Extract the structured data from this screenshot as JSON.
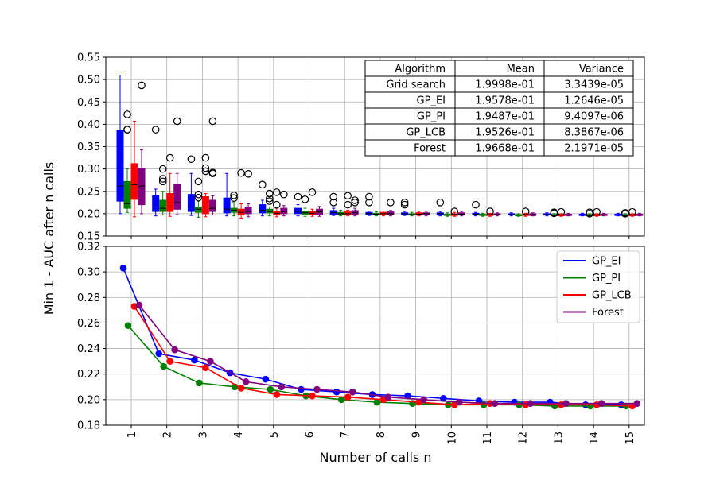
{
  "chart_data": [
    {
      "type": "box",
      "ylabel": "Min 1 - AUC after n calls",
      "ylim": [
        0.15,
        0.55
      ],
      "yticks": [
        "0.15",
        "0.20",
        "0.25",
        "0.30",
        "0.35",
        "0.40",
        "0.45",
        "0.50",
        "0.55"
      ],
      "grid": true,
      "series_colors": {
        "Grid search": "#0000ff",
        "GP_EI": "#008000",
        "GP_PI": "#ff0000",
        "GP_LCB": "#800080"
      },
      "boxes": [
        {
          "n": 1,
          "series": "Grid search",
          "whislo": 0.2,
          "q1": 0.228,
          "med": 0.262,
          "q3": 0.387,
          "whishi": 0.51,
          "fliers": []
        },
        {
          "n": 1,
          "series": "GP_EI",
          "whislo": 0.203,
          "q1": 0.212,
          "med": 0.222,
          "q3": 0.272,
          "whishi": 0.3,
          "fliers": [
            0.422,
            0.388,
            0.388
          ]
        },
        {
          "n": 1,
          "series": "GP_PI",
          "whislo": 0.193,
          "q1": 0.232,
          "med": 0.265,
          "q3": 0.312,
          "whishi": 0.407,
          "fliers": []
        },
        {
          "n": 1,
          "series": "GP_LCB",
          "whislo": 0.2,
          "q1": 0.22,
          "med": 0.262,
          "q3": 0.302,
          "whishi": 0.343,
          "fliers": [
            0.487
          ]
        },
        {
          "n": 2,
          "series": "Grid search",
          "whislo": 0.195,
          "q1": 0.205,
          "med": 0.215,
          "q3": 0.24,
          "whishi": 0.255,
          "fliers": [
            0.388
          ]
        },
        {
          "n": 2,
          "series": "GP_EI",
          "whislo": 0.197,
          "q1": 0.205,
          "med": 0.212,
          "q3": 0.23,
          "whishi": 0.25,
          "fliers": [
            0.3,
            0.278,
            0.272
          ]
        },
        {
          "n": 2,
          "series": "GP_PI",
          "whislo": 0.194,
          "q1": 0.205,
          "med": 0.215,
          "q3": 0.245,
          "whishi": 0.29,
          "fliers": [
            0.325
          ]
        },
        {
          "n": 2,
          "series": "GP_LCB",
          "whislo": 0.198,
          "q1": 0.21,
          "med": 0.225,
          "q3": 0.265,
          "whishi": 0.29,
          "fliers": [
            0.407
          ]
        },
        {
          "n": 3,
          "series": "Grid search",
          "whislo": 0.196,
          "q1": 0.205,
          "med": 0.215,
          "q3": 0.243,
          "whishi": 0.29,
          "fliers": [
            0.322
          ]
        },
        {
          "n": 3,
          "series": "GP_EI",
          "whislo": 0.192,
          "q1": 0.203,
          "med": 0.21,
          "q3": 0.215,
          "whishi": 0.228,
          "fliers": [
            0.272,
            0.243,
            0.236
          ]
        },
        {
          "n": 3,
          "series": "GP_PI",
          "whislo": 0.193,
          "q1": 0.2,
          "med": 0.215,
          "q3": 0.238,
          "whishi": 0.245,
          "fliers": [
            0.325,
            0.302,
            0.295
          ]
        },
        {
          "n": 3,
          "series": "GP_LCB",
          "whislo": 0.197,
          "q1": 0.205,
          "med": 0.212,
          "q3": 0.23,
          "whishi": 0.24,
          "fliers": [
            0.407,
            0.292,
            0.29
          ]
        },
        {
          "n": 4,
          "series": "Grid search",
          "whislo": 0.195,
          "q1": 0.202,
          "med": 0.21,
          "q3": 0.235,
          "whishi": 0.29,
          "fliers": []
        },
        {
          "n": 4,
          "series": "GP_EI",
          "whislo": 0.195,
          "q1": 0.203,
          "med": 0.208,
          "q3": 0.212,
          "whishi": 0.225,
          "fliers": [
            0.241,
            0.235
          ]
        },
        {
          "n": 4,
          "series": "GP_PI",
          "whislo": 0.19,
          "q1": 0.197,
          "med": 0.203,
          "q3": 0.21,
          "whishi": 0.222,
          "fliers": [
            0.291
          ]
        },
        {
          "n": 4,
          "series": "GP_LCB",
          "whislo": 0.193,
          "q1": 0.2,
          "med": 0.205,
          "q3": 0.215,
          "whishi": 0.222,
          "fliers": [
            0.289
          ]
        },
        {
          "n": 5,
          "series": "Grid search",
          "whislo": 0.195,
          "q1": 0.202,
          "med": 0.208,
          "q3": 0.22,
          "whishi": 0.23,
          "fliers": [
            0.265
          ]
        },
        {
          "n": 5,
          "series": "GP_EI",
          "whislo": 0.195,
          "q1": 0.202,
          "med": 0.205,
          "q3": 0.21,
          "whishi": 0.215,
          "fliers": [
            0.245,
            0.234,
            0.228
          ]
        },
        {
          "n": 5,
          "series": "GP_PI",
          "whislo": 0.193,
          "q1": 0.197,
          "med": 0.201,
          "q3": 0.205,
          "whishi": 0.212,
          "fliers": [
            0.248,
            0.22
          ]
        },
        {
          "n": 5,
          "series": "GP_LCB",
          "whislo": 0.195,
          "q1": 0.2,
          "med": 0.205,
          "q3": 0.212,
          "whishi": 0.218,
          "fliers": [
            0.243
          ]
        },
        {
          "n": 6,
          "series": "Grid search",
          "whislo": 0.195,
          "q1": 0.2,
          "med": 0.205,
          "q3": 0.212,
          "whishi": 0.22,
          "fliers": [
            0.238
          ]
        },
        {
          "n": 6,
          "series": "GP_EI",
          "whislo": 0.194,
          "q1": 0.199,
          "med": 0.202,
          "q3": 0.206,
          "whishi": 0.212,
          "fliers": [
            0.232
          ]
        },
        {
          "n": 6,
          "series": "GP_PI",
          "whislo": 0.194,
          "q1": 0.198,
          "med": 0.201,
          "q3": 0.205,
          "whishi": 0.21,
          "fliers": [
            0.248
          ]
        },
        {
          "n": 6,
          "series": "GP_LCB",
          "whislo": 0.194,
          "q1": 0.199,
          "med": 0.204,
          "q3": 0.21,
          "whishi": 0.216,
          "fliers": []
        },
        {
          "n": 7,
          "series": "Grid search",
          "whislo": 0.196,
          "q1": 0.199,
          "med": 0.202,
          "q3": 0.207,
          "whishi": 0.212,
          "fliers": [
            0.238,
            0.225
          ]
        },
        {
          "n": 7,
          "series": "GP_EI",
          "whislo": 0.195,
          "q1": 0.198,
          "med": 0.2,
          "q3": 0.203,
          "whishi": 0.208,
          "fliers": []
        },
        {
          "n": 7,
          "series": "GP_PI",
          "whislo": 0.195,
          "q1": 0.198,
          "med": 0.2,
          "q3": 0.204,
          "whishi": 0.208,
          "fliers": [
            0.24,
            0.22
          ]
        },
        {
          "n": 7,
          "series": "GP_LCB",
          "whislo": 0.195,
          "q1": 0.199,
          "med": 0.202,
          "q3": 0.207,
          "whishi": 0.212,
          "fliers": [
            0.23,
            0.225
          ]
        },
        {
          "n": 8,
          "series": "Grid search",
          "whislo": 0.196,
          "q1": 0.198,
          "med": 0.2,
          "q3": 0.203,
          "whishi": 0.206,
          "fliers": [
            0.238,
            0.225
          ]
        },
        {
          "n": 8,
          "series": "GP_EI",
          "whislo": 0.195,
          "q1": 0.197,
          "med": 0.199,
          "q3": 0.201,
          "whishi": 0.204,
          "fliers": []
        },
        {
          "n": 8,
          "series": "GP_PI",
          "whislo": 0.195,
          "q1": 0.198,
          "med": 0.2,
          "q3": 0.203,
          "whishi": 0.206,
          "fliers": []
        },
        {
          "n": 8,
          "series": "GP_LCB",
          "whislo": 0.195,
          "q1": 0.198,
          "med": 0.2,
          "q3": 0.204,
          "whishi": 0.207,
          "fliers": [
            0.225
          ]
        },
        {
          "n": 9,
          "series": "Grid search",
          "whislo": 0.196,
          "q1": 0.198,
          "med": 0.2,
          "q3": 0.202,
          "whishi": 0.205,
          "fliers": [
            0.225,
            0.22
          ]
        },
        {
          "n": 9,
          "series": "GP_EI",
          "whislo": 0.195,
          "q1": 0.197,
          "med": 0.198,
          "q3": 0.2,
          "whishi": 0.203,
          "fliers": []
        },
        {
          "n": 9,
          "series": "GP_PI",
          "whislo": 0.195,
          "q1": 0.197,
          "med": 0.199,
          "q3": 0.202,
          "whishi": 0.205,
          "fliers": []
        },
        {
          "n": 9,
          "series": "GP_LCB",
          "whislo": 0.195,
          "q1": 0.198,
          "med": 0.2,
          "q3": 0.202,
          "whishi": 0.205,
          "fliers": []
        },
        {
          "n": 10,
          "series": "Grid search",
          "whislo": 0.195,
          "q1": 0.198,
          "med": 0.2,
          "q3": 0.202,
          "whishi": 0.205,
          "fliers": [
            0.225
          ]
        },
        {
          "n": 10,
          "series": "GP_EI",
          "whislo": 0.194,
          "q1": 0.196,
          "med": 0.197,
          "q3": 0.199,
          "whishi": 0.202,
          "fliers": []
        },
        {
          "n": 10,
          "series": "GP_PI",
          "whislo": 0.194,
          "q1": 0.196,
          "med": 0.198,
          "q3": 0.2,
          "whishi": 0.203,
          "fliers": [
            0.205
          ]
        },
        {
          "n": 10,
          "series": "GP_LCB",
          "whislo": 0.195,
          "q1": 0.197,
          "med": 0.199,
          "q3": 0.202,
          "whishi": 0.205,
          "fliers": []
        },
        {
          "n": 11,
          "series": "Grid search",
          "whislo": 0.195,
          "q1": 0.197,
          "med": 0.199,
          "q3": 0.201,
          "whishi": 0.203,
          "fliers": [
            0.22
          ]
        },
        {
          "n": 11,
          "series": "GP_EI",
          "whislo": 0.194,
          "q1": 0.196,
          "med": 0.197,
          "q3": 0.199,
          "whishi": 0.201,
          "fliers": []
        },
        {
          "n": 11,
          "series": "GP_PI",
          "whislo": 0.194,
          "q1": 0.196,
          "med": 0.197,
          "q3": 0.199,
          "whishi": 0.201,
          "fliers": [
            0.205
          ]
        },
        {
          "n": 11,
          "series": "GP_LCB",
          "whislo": 0.195,
          "q1": 0.197,
          "med": 0.198,
          "q3": 0.2,
          "whishi": 0.202,
          "fliers": []
        },
        {
          "n": 12,
          "series": "Grid search",
          "whislo": 0.195,
          "q1": 0.197,
          "med": 0.198,
          "q3": 0.2,
          "whishi": 0.202,
          "fliers": []
        },
        {
          "n": 12,
          "series": "GP_EI",
          "whislo": 0.194,
          "q1": 0.196,
          "med": 0.197,
          "q3": 0.198,
          "whishi": 0.2,
          "fliers": []
        },
        {
          "n": 12,
          "series": "GP_PI",
          "whislo": 0.194,
          "q1": 0.196,
          "med": 0.197,
          "q3": 0.199,
          "whishi": 0.201,
          "fliers": [
            0.205
          ]
        },
        {
          "n": 12,
          "series": "GP_LCB",
          "whislo": 0.195,
          "q1": 0.196,
          "med": 0.198,
          "q3": 0.2,
          "whishi": 0.202,
          "fliers": []
        },
        {
          "n": 13,
          "series": "Grid search",
          "whislo": 0.195,
          "q1": 0.197,
          "med": 0.198,
          "q3": 0.2,
          "whishi": 0.202,
          "fliers": []
        },
        {
          "n": 13,
          "series": "GP_EI",
          "whislo": 0.194,
          "q1": 0.196,
          "med": 0.197,
          "q3": 0.198,
          "whishi": 0.2,
          "fliers": [
            0.203,
            0.201
          ]
        },
        {
          "n": 13,
          "series": "GP_PI",
          "whislo": 0.194,
          "q1": 0.196,
          "med": 0.197,
          "q3": 0.198,
          "whishi": 0.2,
          "fliers": [
            0.204
          ]
        },
        {
          "n": 13,
          "series": "GP_LCB",
          "whislo": 0.195,
          "q1": 0.196,
          "med": 0.197,
          "q3": 0.199,
          "whishi": 0.201,
          "fliers": []
        },
        {
          "n": 14,
          "series": "Grid search",
          "whislo": 0.195,
          "q1": 0.196,
          "med": 0.197,
          "q3": 0.199,
          "whishi": 0.201,
          "fliers": []
        },
        {
          "n": 14,
          "series": "GP_EI",
          "whislo": 0.194,
          "q1": 0.196,
          "med": 0.197,
          "q3": 0.198,
          "whishi": 0.2,
          "fliers": [
            0.203,
            0.2
          ]
        },
        {
          "n": 14,
          "series": "GP_PI",
          "whislo": 0.194,
          "q1": 0.196,
          "med": 0.197,
          "q3": 0.198,
          "whishi": 0.2,
          "fliers": [
            0.204
          ]
        },
        {
          "n": 14,
          "series": "GP_LCB",
          "whislo": 0.195,
          "q1": 0.196,
          "med": 0.197,
          "q3": 0.199,
          "whishi": 0.201,
          "fliers": []
        },
        {
          "n": 15,
          "series": "Grid search",
          "whislo": 0.195,
          "q1": 0.196,
          "med": 0.197,
          "q3": 0.199,
          "whishi": 0.201,
          "fliers": []
        },
        {
          "n": 15,
          "series": "GP_EI",
          "whislo": 0.194,
          "q1": 0.195,
          "med": 0.196,
          "q3": 0.198,
          "whishi": 0.2,
          "fliers": [
            0.202,
            0.2
          ]
        },
        {
          "n": 15,
          "series": "GP_PI",
          "whislo": 0.194,
          "q1": 0.196,
          "med": 0.197,
          "q3": 0.198,
          "whishi": 0.2,
          "fliers": [
            0.204
          ]
        },
        {
          "n": 15,
          "series": "GP_LCB",
          "whislo": 0.195,
          "q1": 0.196,
          "med": 0.197,
          "q3": 0.199,
          "whishi": 0.201,
          "fliers": []
        }
      ],
      "table": {
        "headers": [
          "Algorithm",
          "Mean",
          "Variance"
        ],
        "rows": [
          [
            "Grid search",
            "1.9998e-01",
            "3.3439e-05"
          ],
          [
            "GP_EI",
            "1.9578e-01",
            "1.2646e-05"
          ],
          [
            "GP_PI",
            "1.9487e-01",
            "9.4097e-06"
          ],
          [
            "GP_LCB",
            "1.9526e-01",
            "8.3867e-06"
          ],
          [
            "Forest",
            "1.9668e-01",
            "2.1971e-05"
          ]
        ]
      }
    },
    {
      "type": "line",
      "xlabel": "Number of calls n",
      "ylim": [
        0.18,
        0.32
      ],
      "yticks": [
        "0.18",
        "0.20",
        "0.22",
        "0.24",
        "0.26",
        "0.28",
        "0.30",
        "0.32"
      ],
      "x": [
        1,
        2,
        3,
        4,
        5,
        6,
        7,
        8,
        9,
        10,
        11,
        12,
        13,
        14,
        15
      ],
      "xticks": [
        "1",
        "2",
        "3",
        "4",
        "5",
        "6",
        "7",
        "8",
        "9",
        "10",
        "11",
        "12",
        "13",
        "14",
        "15"
      ],
      "grid": true,
      "legend": "top-right",
      "series": [
        {
          "name": "GP_EI",
          "color": "#0000ff",
          "values": [
            0.303,
            0.236,
            0.231,
            0.221,
            0.216,
            0.208,
            0.206,
            0.204,
            0.203,
            0.201,
            0.199,
            0.198,
            0.198,
            0.196,
            0.196
          ]
        },
        {
          "name": "GP_PI",
          "color": "#008000",
          "values": [
            0.258,
            0.226,
            0.213,
            0.21,
            0.208,
            0.203,
            0.2,
            0.198,
            0.197,
            0.196,
            0.196,
            0.196,
            0.195,
            0.195,
            0.195
          ]
        },
        {
          "name": "GP_LCB",
          "color": "#ff0000",
          "values": [
            0.273,
            0.23,
            0.225,
            0.209,
            0.204,
            0.203,
            0.202,
            0.2,
            0.198,
            0.196,
            0.197,
            0.196,
            0.196,
            0.196,
            0.195
          ]
        },
        {
          "name": "Forest",
          "color": "#800080",
          "values": [
            0.274,
            0.239,
            0.23,
            0.214,
            0.21,
            0.208,
            0.206,
            0.202,
            0.2,
            0.198,
            0.197,
            0.197,
            0.197,
            0.197,
            0.197
          ]
        }
      ]
    }
  ]
}
